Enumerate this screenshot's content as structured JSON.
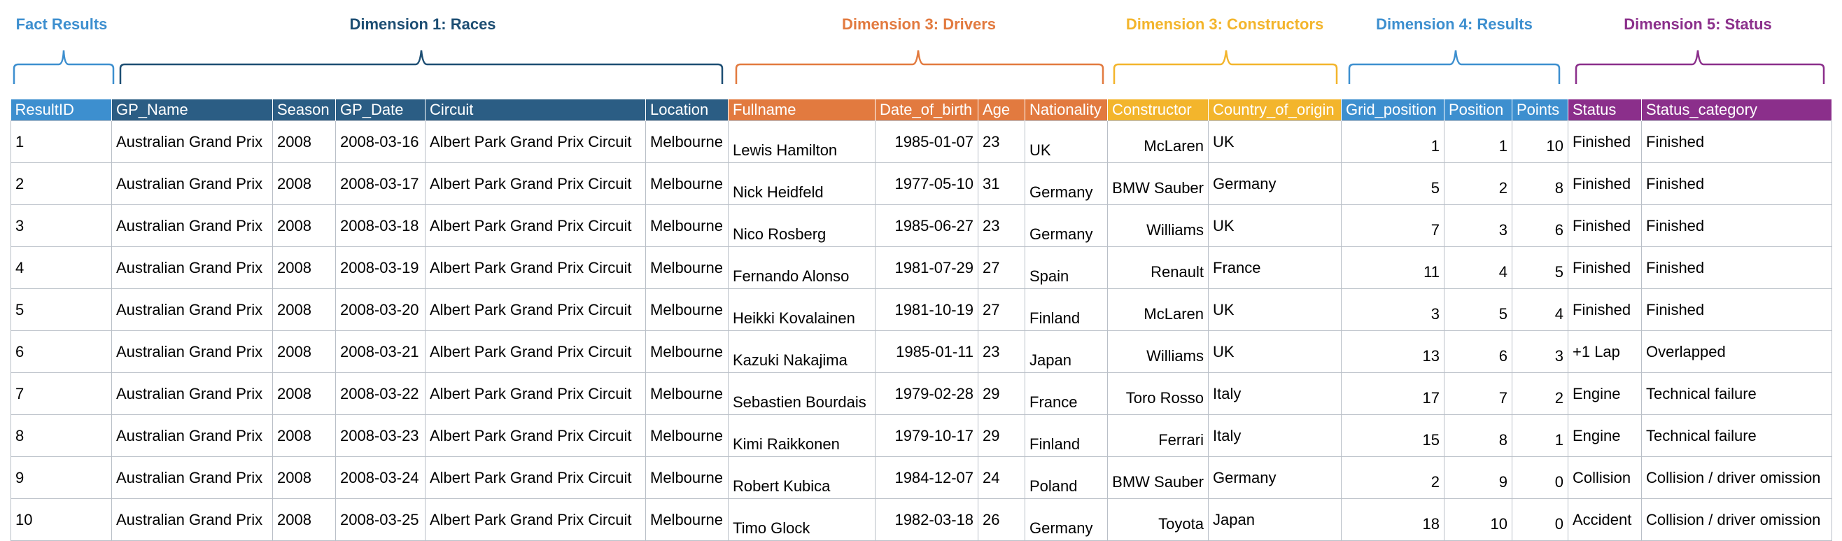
{
  "colors": {
    "fact": "#3d8fcf",
    "races": "#1d4e73",
    "drivers": "#e27a3f",
    "constructors": "#f3b52c",
    "results": "#3d8fcf",
    "status": "#8b2f8b",
    "races_header_bg": "#2b5d84",
    "fact_header_bg": "#3d8fcf"
  },
  "groups": [
    {
      "key": "fact",
      "label": "Fact Results"
    },
    {
      "key": "races",
      "label": "Dimension 1: Races"
    },
    {
      "key": "drivers",
      "label": "Dimension 3: Drivers"
    },
    {
      "key": "constructors",
      "label": "Dimension 3: Constructors"
    },
    {
      "key": "results",
      "label": "Dimension 4: Results"
    },
    {
      "key": "status",
      "label": "Dimension 5: Status"
    }
  ],
  "columns": [
    {
      "key": "result_id",
      "label": "ResultID",
      "group": "fact"
    },
    {
      "key": "gp_name",
      "label": "GP_Name",
      "group": "races"
    },
    {
      "key": "season",
      "label": "Season",
      "group": "races"
    },
    {
      "key": "gp_date",
      "label": "GP_Date",
      "group": "races"
    },
    {
      "key": "circuit",
      "label": "Circuit",
      "group": "races"
    },
    {
      "key": "location",
      "label": "Location",
      "group": "races"
    },
    {
      "key": "fullname",
      "label": "Fullname",
      "group": "drivers"
    },
    {
      "key": "date_of_birth",
      "label": "Date_of_birth",
      "group": "drivers"
    },
    {
      "key": "age",
      "label": "Age",
      "group": "drivers"
    },
    {
      "key": "nationality",
      "label": "Nationality",
      "group": "drivers"
    },
    {
      "key": "constructor",
      "label": "Constructor",
      "group": "constructors"
    },
    {
      "key": "country_of_origin",
      "label": "Country_of_origin",
      "group": "constructors"
    },
    {
      "key": "grid_position",
      "label": "Grid_position",
      "group": "results"
    },
    {
      "key": "position",
      "label": "Position",
      "group": "results"
    },
    {
      "key": "points",
      "label": "Points",
      "group": "results"
    },
    {
      "key": "status",
      "label": "Status",
      "group": "status"
    },
    {
      "key": "status_category",
      "label": "Status_category",
      "group": "status"
    }
  ],
  "rows": [
    {
      "result_id": "1",
      "gp_name": "Australian Grand Prix",
      "season": "2008",
      "gp_date": "2008-03-16",
      "circuit": "Albert Park Grand Prix Circuit",
      "location": "Melbourne",
      "fullname": "Lewis Hamilton",
      "date_of_birth": "1985-01-07",
      "age": "23",
      "nationality": "UK",
      "constructor": "McLaren",
      "country_of_origin": "UK",
      "grid_position": "1",
      "position": "1",
      "points": "10",
      "status": "Finished",
      "status_category": "Finished"
    },
    {
      "result_id": "2",
      "gp_name": "Australian Grand Prix",
      "season": "2008",
      "gp_date": "2008-03-17",
      "circuit": "Albert Park Grand Prix Circuit",
      "location": "Melbourne",
      "fullname": "Nick Heidfeld",
      "date_of_birth": "1977-05-10",
      "age": "31",
      "nationality": "Germany",
      "constructor": "BMW Sauber",
      "country_of_origin": "Germany",
      "grid_position": "5",
      "position": "2",
      "points": "8",
      "status": "Finished",
      "status_category": "Finished"
    },
    {
      "result_id": "3",
      "gp_name": "Australian Grand Prix",
      "season": "2008",
      "gp_date": "2008-03-18",
      "circuit": "Albert Park Grand Prix Circuit",
      "location": "Melbourne",
      "fullname": "Nico Rosberg",
      "date_of_birth": "1985-06-27",
      "age": "23",
      "nationality": "Germany",
      "constructor": "Williams",
      "country_of_origin": "UK",
      "grid_position": "7",
      "position": "3",
      "points": "6",
      "status": "Finished",
      "status_category": "Finished"
    },
    {
      "result_id": "4",
      "gp_name": "Australian Grand Prix",
      "season": "2008",
      "gp_date": "2008-03-19",
      "circuit": "Albert Park Grand Prix Circuit",
      "location": "Melbourne",
      "fullname": "Fernando Alonso",
      "date_of_birth": "1981-07-29",
      "age": "27",
      "nationality": "Spain",
      "constructor": "Renault",
      "country_of_origin": "France",
      "grid_position": "11",
      "position": "4",
      "points": "5",
      "status": "Finished",
      "status_category": "Finished"
    },
    {
      "result_id": "5",
      "gp_name": "Australian Grand Prix",
      "season": "2008",
      "gp_date": "2008-03-20",
      "circuit": "Albert Park Grand Prix Circuit",
      "location": "Melbourne",
      "fullname": "Heikki Kovalainen",
      "date_of_birth": "1981-10-19",
      "age": "27",
      "nationality": "Finland",
      "constructor": "McLaren",
      "country_of_origin": "UK",
      "grid_position": "3",
      "position": "5",
      "points": "4",
      "status": "Finished",
      "status_category": "Finished"
    },
    {
      "result_id": "6",
      "gp_name": "Australian Grand Prix",
      "season": "2008",
      "gp_date": "2008-03-21",
      "circuit": "Albert Park Grand Prix Circuit",
      "location": "Melbourne",
      "fullname": "Kazuki Nakajima",
      "date_of_birth": "1985-01-11",
      "age": "23",
      "nationality": "Japan",
      "constructor": "Williams",
      "country_of_origin": "UK",
      "grid_position": "13",
      "position": "6",
      "points": "3",
      "status": "+1 Lap",
      "status_category": "Overlapped"
    },
    {
      "result_id": "7",
      "gp_name": "Australian Grand Prix",
      "season": "2008",
      "gp_date": "2008-03-22",
      "circuit": "Albert Park Grand Prix Circuit",
      "location": "Melbourne",
      "fullname": "Sebastien Bourdais",
      "date_of_birth": "1979-02-28",
      "age": "29",
      "nationality": "France",
      "constructor": "Toro Rosso",
      "country_of_origin": "Italy",
      "grid_position": "17",
      "position": "7",
      "points": "2",
      "status": "Engine",
      "status_category": "Technical failure"
    },
    {
      "result_id": "8",
      "gp_name": "Australian Grand Prix",
      "season": "2008",
      "gp_date": "2008-03-23",
      "circuit": "Albert Park Grand Prix Circuit",
      "location": "Melbourne",
      "fullname": "Kimi Raikkonen",
      "date_of_birth": "1979-10-17",
      "age": "29",
      "nationality": "Finland",
      "constructor": "Ferrari",
      "country_of_origin": "Italy",
      "grid_position": "15",
      "position": "8",
      "points": "1",
      "status": "Engine",
      "status_category": "Technical failure"
    },
    {
      "result_id": "9",
      "gp_name": "Australian Grand Prix",
      "season": "2008",
      "gp_date": "2008-03-24",
      "circuit": "Albert Park Grand Prix Circuit",
      "location": "Melbourne",
      "fullname": "Robert Kubica",
      "date_of_birth": "1984-12-07",
      "age": "24",
      "nationality": "Poland",
      "constructor": "BMW Sauber",
      "country_of_origin": "Germany",
      "grid_position": "2",
      "position": "9",
      "points": "0",
      "status": "Collision",
      "status_category": "Collision / driver omission"
    },
    {
      "result_id": "10",
      "gp_name": "Australian Grand Prix",
      "season": "2008",
      "gp_date": "2008-03-25",
      "circuit": "Albert Park Grand Prix Circuit",
      "location": "Melbourne",
      "fullname": "Timo Glock",
      "date_of_birth": "1982-03-18",
      "age": "26",
      "nationality": "Germany",
      "constructor": "Toyota",
      "country_of_origin": "Japan",
      "grid_position": "18",
      "position": "10",
      "points": "0",
      "status": "Accident",
      "status_category": "Collision / driver omission"
    }
  ]
}
